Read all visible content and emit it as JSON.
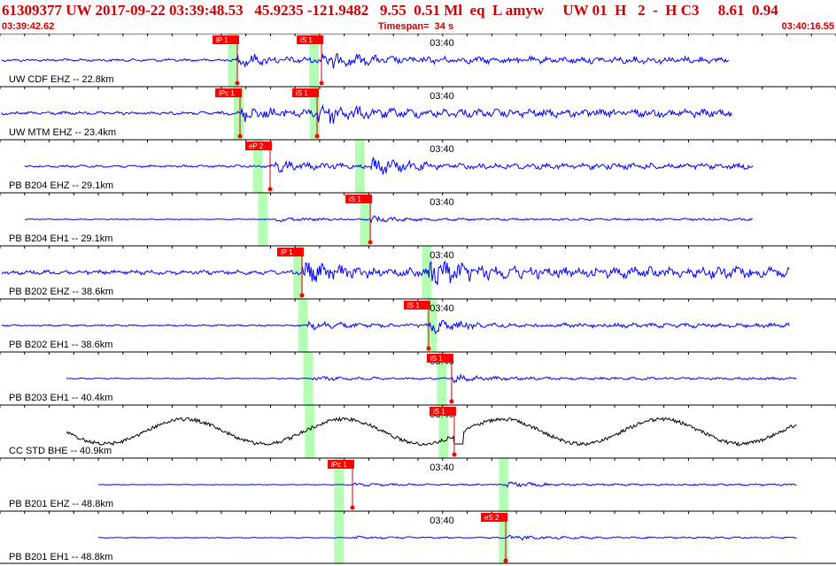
{
  "header": {
    "title": "61309377 UW 2017-09-22 03:39:48.53   45.9235 -121.9482   9.55  0.51 Ml  eq  L amyw     UW 01  H   2  -  H C3     8.61  0.94",
    "start_time": "03:39:42.62",
    "timespan": "Timespan=  34 s",
    "end_time": "03:40:16.55"
  },
  "time_marker_label": "03:40",
  "colors": {
    "waveform": "#0000ff",
    "broadband_waveform": "#000000",
    "pick_bg": "#ff0000",
    "pick_line": "#cc0000",
    "predicted_band": "#b4ffb4",
    "grid": "#000000",
    "header_text": "#cc0000"
  },
  "traces": [
    {
      "label": "UW CDF EHZ -- 22.8km",
      "amp": 0.18,
      "color": "blue",
      "picks": [
        {
          "label": "iP 1",
          "t": 0.2839
        },
        {
          "label": "iS 1",
          "t": 0.3846
        }
      ],
      "predicted": [
        0.278,
        0.375
      ],
      "onset": 0.2839,
      "s_onset": 0.3846,
      "span": [
        0.0,
        0.8829
      ]
    },
    {
      "label": "UW MTM EHZ -- 23.4km",
      "amp": 0.22,
      "color": "blue",
      "picks": [
        {
          "label": "iPc 1",
          "t": 0.2871
        },
        {
          "label": "iS 1",
          "t": 0.3793
        }
      ],
      "predicted": [
        0.285,
        0.376
      ],
      "onset": 0.2871,
      "s_onset": 0.3793,
      "span": [
        0.0,
        0.8861
      ]
    },
    {
      "label": "PB B204 EHZ -- 29.1km",
      "amp": 0.16,
      "color": "blue",
      "picks": [
        {
          "label": "eP 2",
          "t": 0.3231
        }
      ],
      "predicted": [
        0.308,
        0.43
      ],
      "onset": 0.3231,
      "s_onset": 0.4429,
      "span": [
        0.0275,
        0.9121
      ]
    },
    {
      "label": "PB B204 EH1 -- 29.1km",
      "amp": 0.06,
      "color": "blue",
      "picks": [
        {
          "label": "iS 1",
          "t": 0.4429
        }
      ],
      "predicted": [
        0.314,
        0.436
      ],
      "onset": 0.33,
      "s_onset": 0.4429,
      "span": [
        0.0275,
        0.9121
      ]
    },
    {
      "label": "PB B202 EHZ -- 38.6km",
      "amp": 0.3,
      "color": "blue",
      "picks": [
        {
          "label": "iP 1",
          "t": 0.3612
        }
      ],
      "predicted": [
        0.356,
        0.51
      ],
      "onset": 0.3612,
      "s_onset": 0.5127,
      "span": [
        0.0,
        0.9555
      ]
    },
    {
      "label": "PB B202 EH1 -- 38.6km",
      "amp": 0.12,
      "color": "blue",
      "picks": [
        {
          "label": "iS 1",
          "t": 0.5127
        }
      ],
      "predicted": [
        0.362,
        0.516
      ],
      "onset": 0.368,
      "s_onset": 0.5127,
      "span": [
        0.0,
        0.9555
      ]
    },
    {
      "label": "PB B203 EH1 -- 40.4km",
      "amp": 0.07,
      "color": "blue",
      "picks": [
        {
          "label": "iS 1",
          "t": 0.5402
        }
      ],
      "predicted": [
        0.368,
        0.528
      ],
      "onset": 0.374,
      "s_onset": 0.5402,
      "span": [
        0.0773,
        0.964
      ]
    },
    {
      "label": "CC STD BHE -- 40.9km",
      "amp": 0.35,
      "color": "black",
      "picks": [
        {
          "label": "iS 1",
          "t": 0.5434
        }
      ],
      "predicted": [
        0.37,
        0.53
      ],
      "onset": 0.376,
      "s_onset": 0.5434,
      "span": [
        0.0773,
        0.964
      ]
    },
    {
      "label": "PB B201 EHZ -- 48.8km",
      "amp": 0.05,
      "color": "blue",
      "picks": [
        {
          "label": "iPc 1",
          "t": 0.4216
        }
      ],
      "predicted": [
        0.405,
        0.602
      ],
      "onset": 0.4216,
      "s_onset": 0.6049,
      "span": [
        0.1155,
        0.964
      ]
    },
    {
      "label": "PB B201 EH1 -- 48.8km",
      "amp": 0.05,
      "color": "blue",
      "picks": [
        {
          "label": "eS 2",
          "t": 0.6049
        }
      ],
      "predicted": [
        0.405,
        0.602
      ],
      "onset": 0.4216,
      "s_onset": 0.6049,
      "span": [
        0.1155,
        0.964
      ]
    }
  ]
}
